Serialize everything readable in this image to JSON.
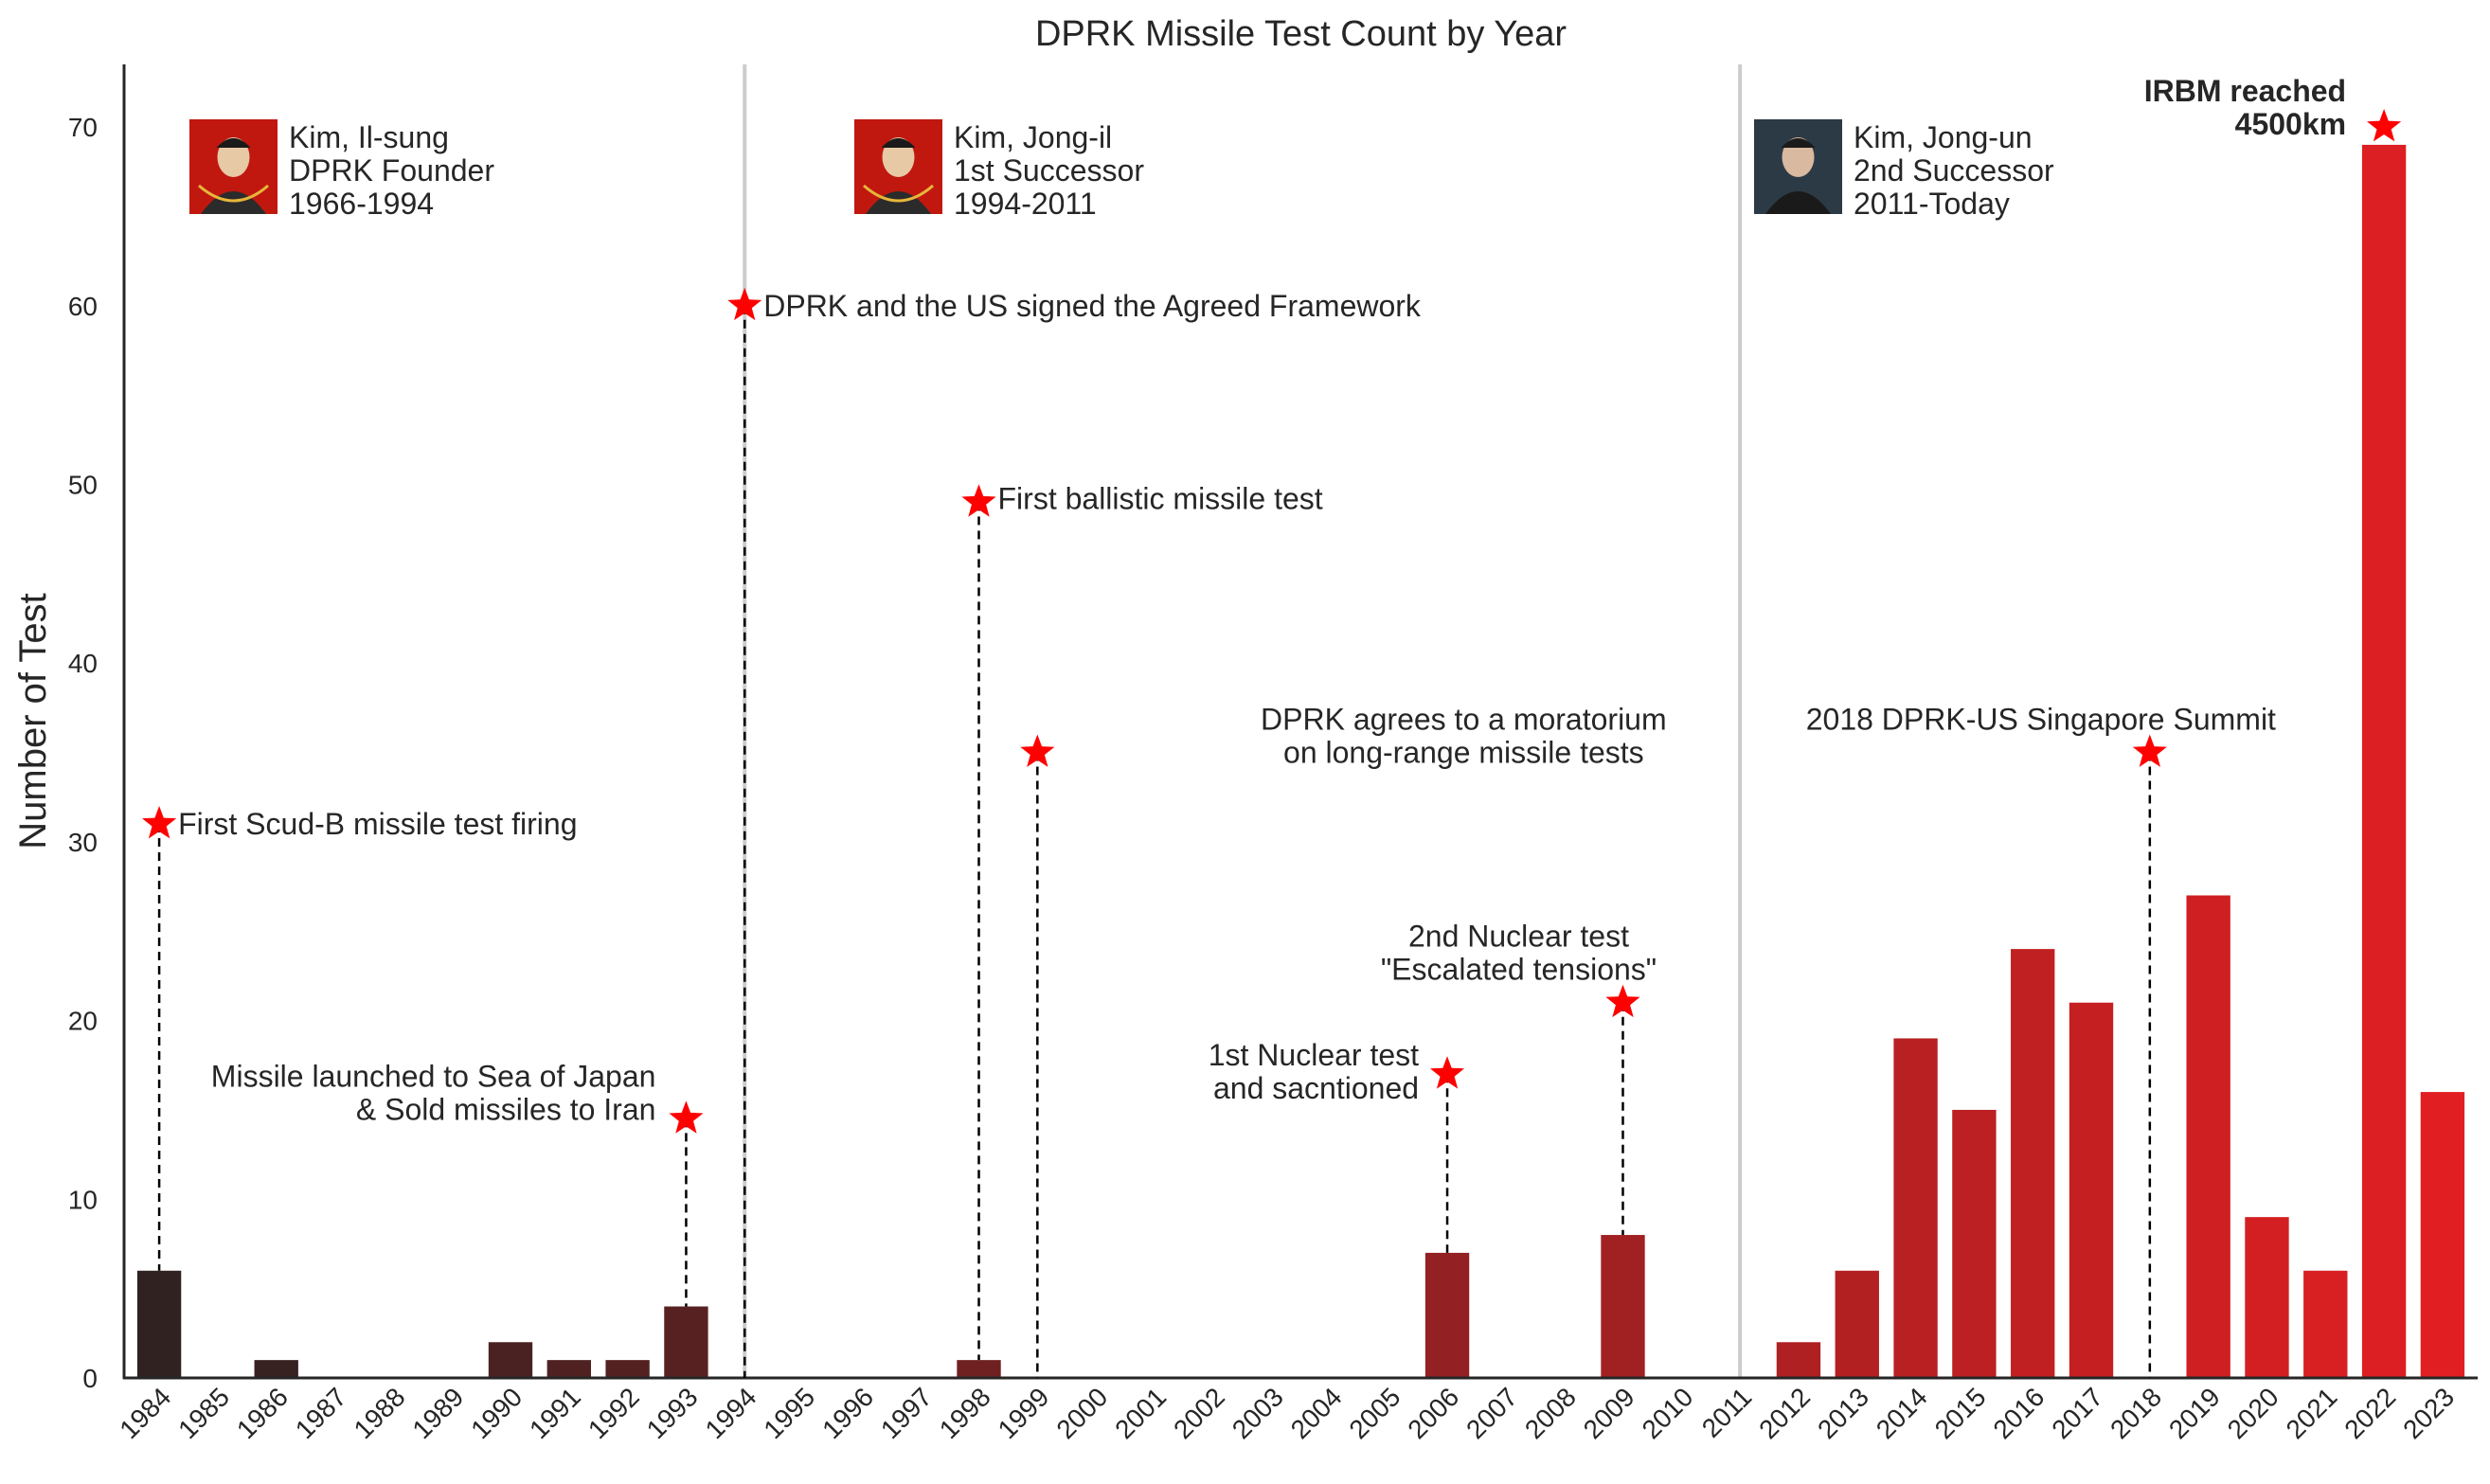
{
  "chart_data": {
    "type": "bar",
    "title": "DPRK Missile Test Count by Year",
    "ylabel": "Number of Test",
    "xlabel": "",
    "ylim": [
      0,
      73.5
    ],
    "yticks": [
      0,
      10,
      20,
      30,
      40,
      50,
      60,
      70
    ],
    "categories": [
      "1984",
      "1985",
      "1986",
      "1987",
      "1988",
      "1989",
      "1990",
      "1991",
      "1992",
      "1993",
      "1994",
      "1995",
      "1996",
      "1997",
      "1998",
      "1999",
      "2000",
      "2001",
      "2002",
      "2003",
      "2004",
      "2005",
      "2006",
      "2007",
      "2008",
      "2009",
      "2010",
      "2011",
      "2012",
      "2013",
      "2014",
      "2015",
      "2016",
      "2017",
      "2018",
      "2019",
      "2020",
      "2021",
      "2022",
      "2023"
    ],
    "values": [
      6,
      0,
      1,
      0,
      0,
      0,
      2,
      1,
      1,
      4,
      0,
      0,
      0,
      0,
      1,
      0,
      0,
      0,
      0,
      0,
      0,
      0,
      7,
      0,
      0,
      8,
      0,
      0,
      2,
      6,
      19,
      15,
      24,
      21,
      0,
      27,
      9,
      6,
      69,
      16
    ],
    "grid": false,
    "era_dividers": [
      "1994",
      "2011"
    ],
    "leaders": [
      {
        "name": "Kim, Il-sung",
        "role": "DPRK Founder",
        "years": "1966-1994",
        "portrait_icon": "kim-il-sung-portrait"
      },
      {
        "name": "Kim, Jong-il",
        "role": "1st Successor",
        "years": "1994-2011",
        "portrait_icon": "kim-jong-il-portrait"
      },
      {
        "name": "Kim, Jong-un",
        "role": "2nd Successor",
        "years": "2011-Today",
        "portrait_icon": "kim-jong-un-portrait"
      }
    ],
    "annotations": [
      {
        "year": "1984",
        "y": 31,
        "lines": [
          "First Scud-B missile test firing"
        ],
        "dashed": true
      },
      {
        "year": "1993",
        "y": 14.5,
        "lines": [
          "Missile launched to Sea of Japan",
          "& Sold missiles to Iran"
        ],
        "dashed": true
      },
      {
        "year": "1994",
        "y": 60,
        "lines": [
          "DPRK and the US signed the Agreed Framework"
        ],
        "dashed": true
      },
      {
        "year": "1998",
        "y": 49,
        "lines": [
          "First ballistic missile test"
        ],
        "dashed": true
      },
      {
        "year": "1999",
        "y": 35,
        "lines": [
          "DPRK agrees to a moratorium",
          "on long-range missile tests"
        ],
        "dashed": true
      },
      {
        "year": "2006",
        "y": 17,
        "lines": [
          "1st Nuclear test",
          "and sacntioned"
        ],
        "dashed": true
      },
      {
        "year": "2009",
        "y": 21,
        "lines": [
          "2nd Nuclear test",
          "\"Escalated tensions\""
        ],
        "dashed": true
      },
      {
        "year": "2018",
        "y": 35,
        "lines": [
          "2018 DPRK-US Singapore Summit"
        ],
        "dashed": true
      },
      {
        "year": "2022",
        "y": 70,
        "lines": [
          "IRBM reached",
          "4500km"
        ],
        "dashed": false,
        "bold": true
      }
    ],
    "colors": {
      "bar_start": "#2f2221",
      "bar_end": "#e11f22",
      "star": "#ff0000",
      "divider": "#cccccc",
      "axis": "#262626",
      "portrait_red": "#c0180f",
      "portrait_dark": "#2c3a45"
    }
  }
}
